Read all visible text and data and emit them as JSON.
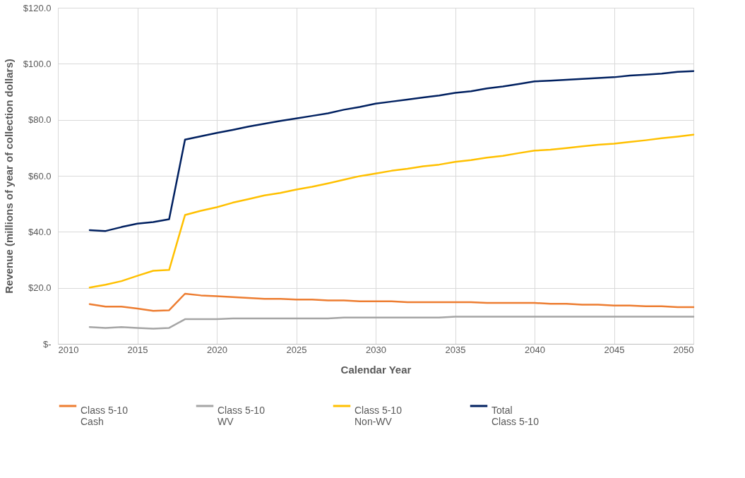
{
  "chart_data": {
    "type": "line",
    "xlabel": "Calendar Year",
    "ylabel": "Revenue (millions of year of collection dollars)",
    "x": [
      2012,
      2013,
      2014,
      2015,
      2016,
      2017,
      2018,
      2019,
      2020,
      2021,
      2022,
      2023,
      2024,
      2025,
      2026,
      2027,
      2028,
      2029,
      2030,
      2031,
      2032,
      2033,
      2034,
      2035,
      2036,
      2037,
      2038,
      2039,
      2040,
      2041,
      2042,
      2043,
      2044,
      2045,
      2046,
      2047,
      2048,
      2049,
      2050
    ],
    "series": [
      {
        "name": "Class 5-10\nCash",
        "color": "#ed7d31",
        "values": [
          14.2,
          13.3,
          13.3,
          12.6,
          11.8,
          12.0,
          17.9,
          17.3,
          17.0,
          16.7,
          16.4,
          16.1,
          16.1,
          15.8,
          15.8,
          15.5,
          15.5,
          15.2,
          15.2,
          15.2,
          14.9,
          14.9,
          14.9,
          14.9,
          14.9,
          14.6,
          14.6,
          14.6,
          14.6,
          14.3,
          14.3,
          14.0,
          14.0,
          13.7,
          13.7,
          13.4,
          13.4,
          13.1,
          13.1
        ]
      },
      {
        "name": "Class 5-10\nWV",
        "color": "#a5a5a5",
        "values": [
          6.0,
          5.7,
          6.0,
          5.7,
          5.4,
          5.7,
          8.8,
          8.8,
          8.8,
          9.1,
          9.1,
          9.1,
          9.1,
          9.1,
          9.1,
          9.1,
          9.4,
          9.4,
          9.4,
          9.4,
          9.4,
          9.4,
          9.4,
          9.7,
          9.7,
          9.7,
          9.7,
          9.7,
          9.7,
          9.7,
          9.7,
          9.7,
          9.7,
          9.7,
          9.7,
          9.7,
          9.7,
          9.7,
          9.7
        ]
      },
      {
        "name": "Class 5-10\nNon-WV",
        "color": "#ffc000",
        "values": [
          20.1,
          21.1,
          22.4,
          24.3,
          26.1,
          26.4,
          46.0,
          47.5,
          48.8,
          50.4,
          51.7,
          53.0,
          53.9,
          55.1,
          56.1,
          57.3,
          58.6,
          59.9,
          60.8,
          61.8,
          62.5,
          63.4,
          64.0,
          65.0,
          65.6,
          66.5,
          67.1,
          68.1,
          69.0,
          69.3,
          69.9,
          70.5,
          71.1,
          71.5,
          72.1,
          72.7,
          73.4,
          74.0,
          74.7
        ]
      },
      {
        "name": "Total\nClass 5-10",
        "color": "#002060",
        "values": [
          40.6,
          40.3,
          41.7,
          42.9,
          43.5,
          44.5,
          72.9,
          74.1,
          75.3,
          76.4,
          77.6,
          78.6,
          79.6,
          80.5,
          81.4,
          82.3,
          83.6,
          84.6,
          85.8,
          86.5,
          87.2,
          88.0,
          88.7,
          89.6,
          90.2,
          91.2,
          91.9,
          92.8,
          93.7,
          94.0,
          94.3,
          94.6,
          94.9,
          95.2,
          95.8,
          96.1,
          96.5,
          97.1,
          97.4
        ]
      }
    ],
    "xlim": [
      2010,
      2050
    ],
    "xticks": [
      2010,
      2015,
      2020,
      2025,
      2030,
      2035,
      2040,
      2045,
      2050
    ],
    "ylim": [
      0,
      120
    ],
    "yticks": [
      {
        "value": 0,
        "label": "$-"
      },
      {
        "value": 20,
        "label": "$20.0"
      },
      {
        "value": 40,
        "label": "$40.0"
      },
      {
        "value": 60,
        "label": "$60.0"
      },
      {
        "value": 80,
        "label": "$80.0"
      },
      {
        "value": 100,
        "label": "$100.0"
      },
      {
        "value": 120,
        "label": "$120.0"
      }
    ],
    "grid": true,
    "legend": "bottom",
    "marker": "none",
    "line_style": "solid"
  }
}
